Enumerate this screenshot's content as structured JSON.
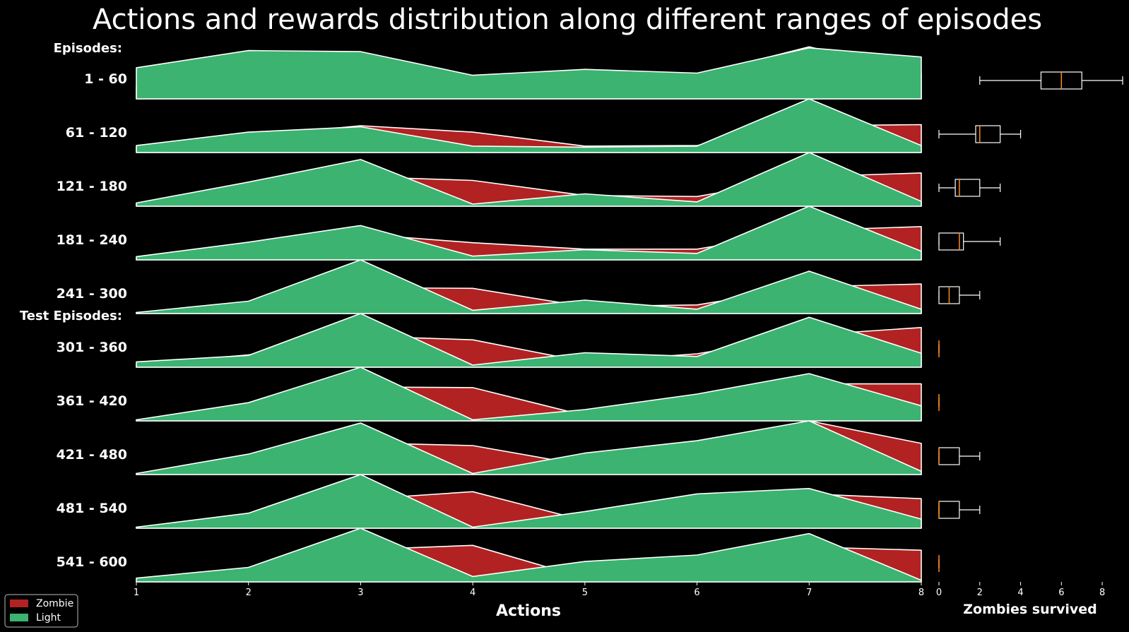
{
  "chart_data": {
    "type": "area",
    "title": "Actions and rewards distribution along different ranges of episodes",
    "xlabel": "Actions",
    "x": [
      1,
      2,
      3,
      4,
      5,
      6,
      7,
      8
    ],
    "group_labels": {
      "train": "Episodes:",
      "test": "Test Episodes:"
    },
    "legend": {
      "placement": "bottom-left",
      "entries": [
        {
          "name": "Zombie",
          "color": "#b22222"
        },
        {
          "name": "Light",
          "color": "#3cb371"
        }
      ]
    },
    "ranges": [
      {
        "label": "1 - 60",
        "zombie": [
          0.22,
          0.62,
          0.5,
          0.4,
          0.35,
          0.44,
          0.97,
          0.47
        ],
        "light": [
          0.58,
          0.9,
          0.88,
          0.44,
          0.55,
          0.48,
          0.95,
          0.78
        ]
      },
      {
        "label": "61 - 120",
        "zombie": [
          0.1,
          0.3,
          0.5,
          0.38,
          0.12,
          0.13,
          0.5,
          0.52
        ],
        "light": [
          0.13,
          0.38,
          0.48,
          0.12,
          0.1,
          0.12,
          1.0,
          0.13
        ]
      },
      {
        "label": "121 - 180",
        "zombie": [
          0.05,
          0.25,
          0.55,
          0.48,
          0.2,
          0.18,
          0.55,
          0.62
        ],
        "light": [
          0.06,
          0.45,
          0.87,
          0.04,
          0.23,
          0.08,
          1.0,
          0.09
        ]
      },
      {
        "label": "181 - 240",
        "zombie": [
          0.03,
          0.22,
          0.48,
          0.32,
          0.2,
          0.2,
          0.55,
          0.62
        ],
        "light": [
          0.06,
          0.33,
          0.64,
          0.07,
          0.19,
          0.12,
          1.0,
          0.16
        ]
      },
      {
        "label": "241 - 300",
        "zombie": [
          0.02,
          0.2,
          0.48,
          0.47,
          0.13,
          0.16,
          0.5,
          0.55
        ],
        "light": [
          0.02,
          0.23,
          1.0,
          0.06,
          0.25,
          0.08,
          0.79,
          0.08
        ]
      },
      {
        "label": "301 - 360",
        "zombie": [
          0.05,
          0.23,
          0.58,
          0.51,
          0.1,
          0.25,
          0.6,
          0.74
        ],
        "light": [
          0.1,
          0.22,
          1.0,
          0.04,
          0.27,
          0.2,
          0.93,
          0.26
        ]
      },
      {
        "label": "361 - 420",
        "zombie": [
          0.02,
          0.24,
          0.63,
          0.62,
          0.1,
          0.21,
          0.69,
          0.69
        ],
        "light": [
          0.02,
          0.34,
          1.0,
          0.02,
          0.21,
          0.5,
          0.88,
          0.28
        ]
      },
      {
        "label": "421 - 480",
        "zombie": [
          0.02,
          0.26,
          0.59,
          0.54,
          0.17,
          0.33,
          1.0,
          0.58
        ],
        "light": [
          0.02,
          0.38,
          0.96,
          0.02,
          0.4,
          0.63,
          1.0,
          0.06
        ]
      },
      {
        "label": "481 - 540",
        "zombie": [
          0.02,
          0.25,
          0.54,
          0.68,
          0.14,
          0.37,
          0.64,
          0.55
        ],
        "light": [
          0.02,
          0.28,
          1.0,
          0.02,
          0.31,
          0.64,
          0.74,
          0.17
        ]
      },
      {
        "label": "541 - 600",
        "zombie": [
          0.02,
          0.25,
          0.6,
          0.68,
          0.07,
          0.41,
          0.65,
          0.59
        ],
        "light": [
          0.07,
          0.27,
          1.0,
          0.1,
          0.38,
          0.5,
          0.9,
          0.03
        ]
      }
    ],
    "boxplot": {
      "xlabel": "Zombies survived",
      "xticks": [
        0,
        2,
        4,
        6,
        8
      ],
      "xlim": [
        0,
        9
      ],
      "boxes": [
        {
          "min": 2,
          "q1": 5,
          "median": 6,
          "q3": 7,
          "max": 9
        },
        {
          "min": 0,
          "q1": 1.8,
          "median": 2,
          "q3": 3,
          "max": 4
        },
        {
          "min": 0,
          "q1": 0.8,
          "median": 1,
          "q3": 2,
          "max": 3
        },
        {
          "min": 0,
          "q1": 0,
          "median": 1,
          "q3": 1.2,
          "max": 3
        },
        {
          "min": 0,
          "q1": 0,
          "median": 0.5,
          "q3": 1,
          "max": 2
        },
        {
          "min": 0,
          "q1": 0,
          "median": 0,
          "q3": 0,
          "max": 0
        },
        {
          "min": 0,
          "q1": 0,
          "median": 0,
          "q3": 0,
          "max": 0
        },
        {
          "min": 0,
          "q1": 0,
          "median": 0,
          "q3": 1,
          "max": 2
        },
        {
          "min": 0,
          "q1": 0,
          "median": 0,
          "q3": 1,
          "max": 2
        },
        {
          "min": 0,
          "q1": 0,
          "median": 0,
          "q3": 0,
          "max": 0
        }
      ]
    },
    "colors": {
      "zombie": "#b22222",
      "light": "#3cb371",
      "median": "#ff8c1a",
      "line": "#ffffff",
      "background": "#000000"
    }
  }
}
